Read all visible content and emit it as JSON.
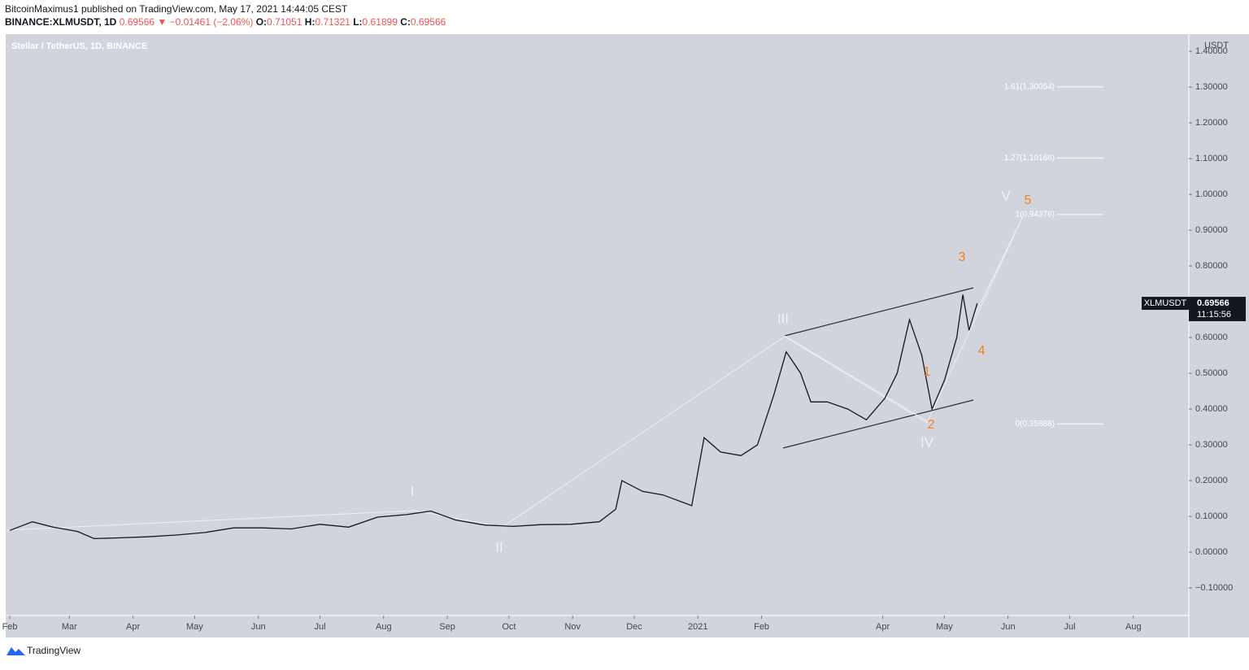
{
  "header": {
    "author": "BitcoinMaximus1 published on TradingView.com, May 17, 2021 14:44:05 CEST",
    "symbol": "BINANCE:XLMUSDT, 1D",
    "change": "0.69566 ▼ −0.01461 (−2.06%)",
    "ohlc": [
      {
        "key": "O:",
        "value": "0.71051"
      },
      {
        "key": "H:",
        "value": "0.71321"
      },
      {
        "key": "L:",
        "value": "0.61899"
      },
      {
        "key": "C:",
        "value": "0.69566"
      }
    ]
  },
  "chart_data": {
    "type": "line",
    "title": "Stellar / TetherUS, 1D, BINANCE",
    "y_unit": "USDT",
    "color": "#131722",
    "background": "#d1d4dc",
    "x": [
      "2020-02-01",
      "2020-02-12",
      "2020-02-22",
      "2020-03-05",
      "2020-03-13",
      "2020-03-25",
      "2020-04-08",
      "2020-04-22",
      "2020-05-06",
      "2020-05-20",
      "2020-06-03",
      "2020-06-17",
      "2020-07-01",
      "2020-07-15",
      "2020-07-29",
      "2020-08-12",
      "2020-08-24",
      "2020-09-05",
      "2020-09-19",
      "2020-10-03",
      "2020-10-17",
      "2020-10-31",
      "2020-11-14",
      "2020-11-22",
      "2020-11-25",
      "2020-12-05",
      "2020-12-15",
      "2020-12-29",
      "2021-01-04",
      "2021-01-12",
      "2021-01-22",
      "2021-01-30",
      "2021-02-07",
      "2021-02-13",
      "2021-02-20",
      "2021-02-25",
      "2021-03-05",
      "2021-03-15",
      "2021-03-24",
      "2021-04-02",
      "2021-04-08",
      "2021-04-14",
      "2021-04-20",
      "2021-04-25",
      "2021-05-01",
      "2021-05-07",
      "2021-05-10",
      "2021-05-13",
      "2021-05-17"
    ],
    "values": [
      0.061,
      0.085,
      0.07,
      0.058,
      0.038,
      0.04,
      0.043,
      0.048,
      0.055,
      0.068,
      0.068,
      0.065,
      0.078,
      0.07,
      0.098,
      0.105,
      0.115,
      0.09,
      0.076,
      0.072,
      0.077,
      0.078,
      0.085,
      0.12,
      0.2,
      0.17,
      0.16,
      0.13,
      0.32,
      0.28,
      0.27,
      0.3,
      0.44,
      0.56,
      0.5,
      0.42,
      0.42,
      0.4,
      0.37,
      0.43,
      0.5,
      0.65,
      0.55,
      0.4,
      0.48,
      0.6,
      0.72,
      0.62,
      0.69566
    ],
    "xlim": [
      "2020-01-30",
      "2021-08-28"
    ],
    "xticks": [
      {
        "value": "2020-02-01",
        "label": "Feb"
      },
      {
        "value": "2020-03-01",
        "label": "Mar"
      },
      {
        "value": "2020-04-01",
        "label": "Apr"
      },
      {
        "value": "2020-05-01",
        "label": "May"
      },
      {
        "value": "2020-06-01",
        "label": "Jun"
      },
      {
        "value": "2020-07-01",
        "label": "Jul"
      },
      {
        "value": "2020-08-01",
        "label": "Aug"
      },
      {
        "value": "2020-09-01",
        "label": "Sep"
      },
      {
        "value": "2020-10-01",
        "label": "Oct"
      },
      {
        "value": "2020-11-01",
        "label": "Nov"
      },
      {
        "value": "2020-12-01",
        "label": "Dec"
      },
      {
        "value": "2021-01-01",
        "label": "2021"
      },
      {
        "value": "2021-02-01",
        "label": "Feb"
      },
      {
        "value": "2021-04-01",
        "label": "Apr"
      },
      {
        "value": "2021-05-01",
        "label": "May"
      },
      {
        "value": "2021-06-01",
        "label": "Jun"
      },
      {
        "value": "2021-07-01",
        "label": "Jul"
      },
      {
        "value": "2021-08-01",
        "label": "Aug"
      }
    ],
    "ylim": [
      -0.177,
      1.448
    ],
    "yticks": [
      {
        "value": -0.1,
        "label": "−0.10000"
      },
      {
        "value": 0,
        "label": "0.00000"
      },
      {
        "value": 0.1,
        "label": "0.10000"
      },
      {
        "value": 0.2,
        "label": "0.20000"
      },
      {
        "value": 0.3,
        "label": "0.30000"
      },
      {
        "value": 0.4,
        "label": "0.40000"
      },
      {
        "value": 0.5,
        "label": "0.50000"
      },
      {
        "value": 0.6,
        "label": "0.60000"
      },
      {
        "value": 0.7,
        "label": "0.70000"
      },
      {
        "value": 0.8,
        "label": "0.80000"
      },
      {
        "value": 0.9,
        "label": "0.90000"
      },
      {
        "value": 1.0,
        "label": "1.00000"
      },
      {
        "value": 1.1,
        "label": "1.10000"
      },
      {
        "value": 1.2,
        "label": "1.20000"
      },
      {
        "value": 1.3,
        "label": "1.30000"
      },
      {
        "value": 1.4,
        "label": "1.40000"
      }
    ],
    "fib_levels": [
      {
        "value": 1.30054,
        "label": "1.61(1.30054)"
      },
      {
        "value": 1.10168,
        "label": "1.27(1.10168)"
      },
      {
        "value": 0.94376,
        "label": "1(0.94376)"
      },
      {
        "value": 0.35888,
        "label": "0(0.35888)"
      }
    ],
    "wave_labels": [
      "I",
      "II",
      "III",
      "IV",
      "V"
    ],
    "subwave_labels": [
      "1",
      "2",
      "3",
      "4",
      "5"
    ],
    "last_price": {
      "symbol": "XLMUSDT",
      "value": 0.69566,
      "countdown": "11:15:56"
    }
  },
  "footer": {
    "brand": "TradingView"
  }
}
